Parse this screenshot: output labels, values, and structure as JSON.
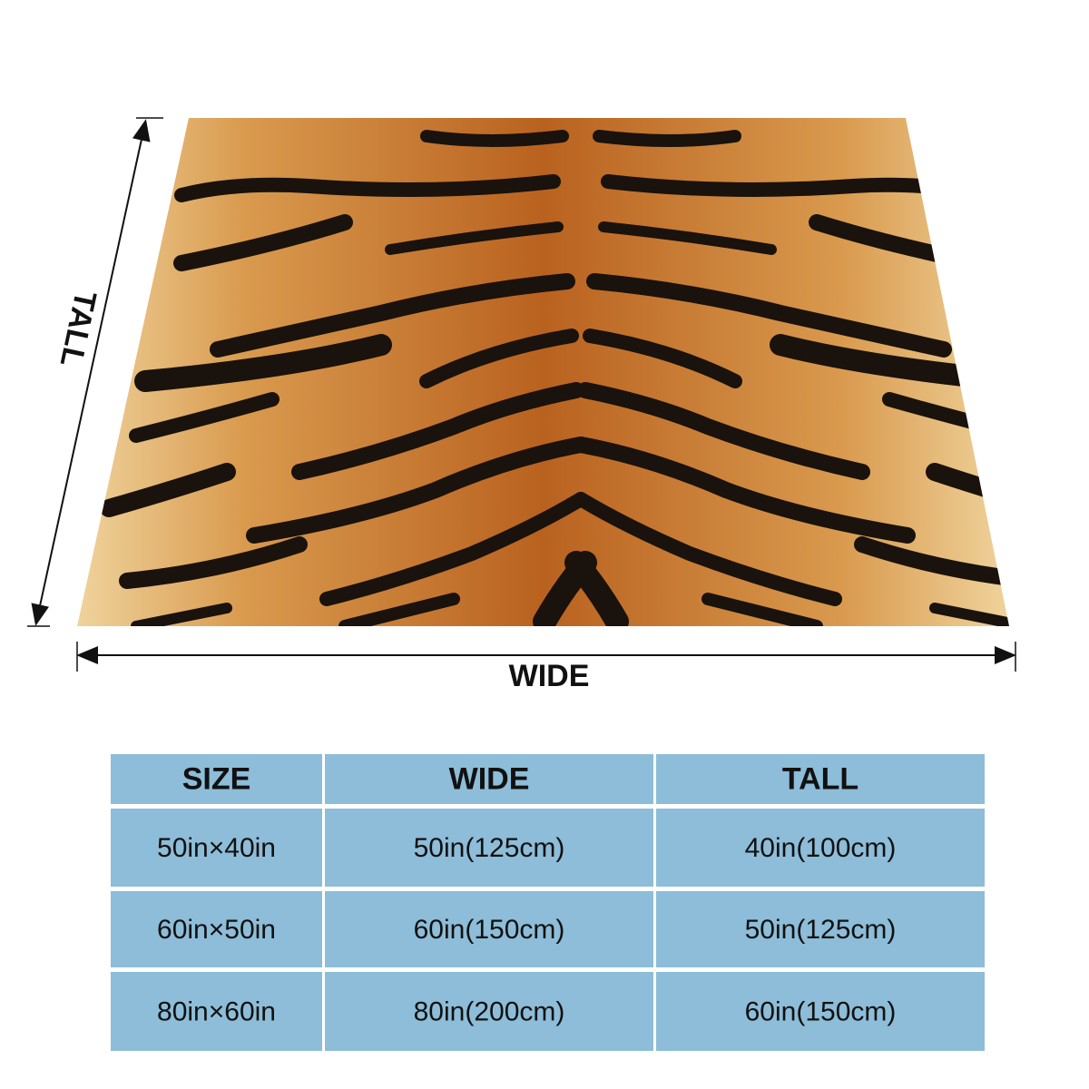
{
  "labels": {
    "tall": "TALL",
    "wide": "WIDE"
  },
  "table": {
    "header": [
      "SIZE",
      "WIDE",
      "TALL"
    ],
    "rows": [
      [
        "50in×40in",
        "50in(125cm)",
        "40in(100cm)"
      ],
      [
        "60in×50in",
        "60in(150cm)",
        "50in(125cm)"
      ],
      [
        "80in×60in",
        "80in(200cm)",
        "60in(150cm)"
      ]
    ]
  }
}
